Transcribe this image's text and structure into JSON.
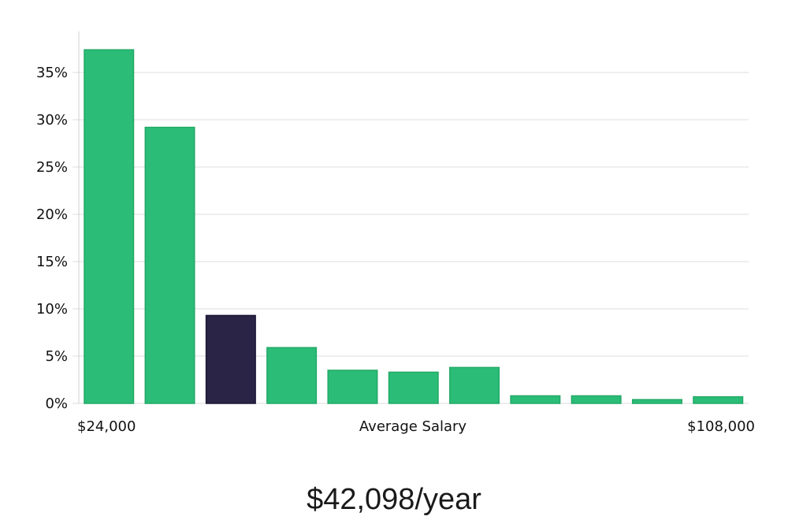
{
  "chart_data": {
    "type": "bar",
    "categories": [
      "1",
      "2",
      "3",
      "4",
      "5",
      "6",
      "7",
      "8",
      "9",
      "10",
      "11"
    ],
    "values": [
      37.4,
      29.2,
      9.3,
      5.9,
      3.5,
      3.3,
      3.8,
      0.8,
      0.8,
      0.4,
      0.7
    ],
    "highlight_index": 2,
    "ylim": [
      0,
      39
    ],
    "yticks": [
      0,
      5,
      10,
      15,
      20,
      25,
      30,
      35
    ],
    "ytick_suffix": "%",
    "xlabel": "Average Salary",
    "x_start_label": "$24,000",
    "x_end_label": "$108,000",
    "grid": true,
    "colors": {
      "bar": "#2bbd77",
      "bar_edge": "#22a866",
      "highlight": "#2a2547",
      "highlight_edge": "#1a1633",
      "grid": "#dcdcdc",
      "axis": "#cfcfcf"
    }
  },
  "summary": {
    "salary_text": "$42,098/year"
  }
}
